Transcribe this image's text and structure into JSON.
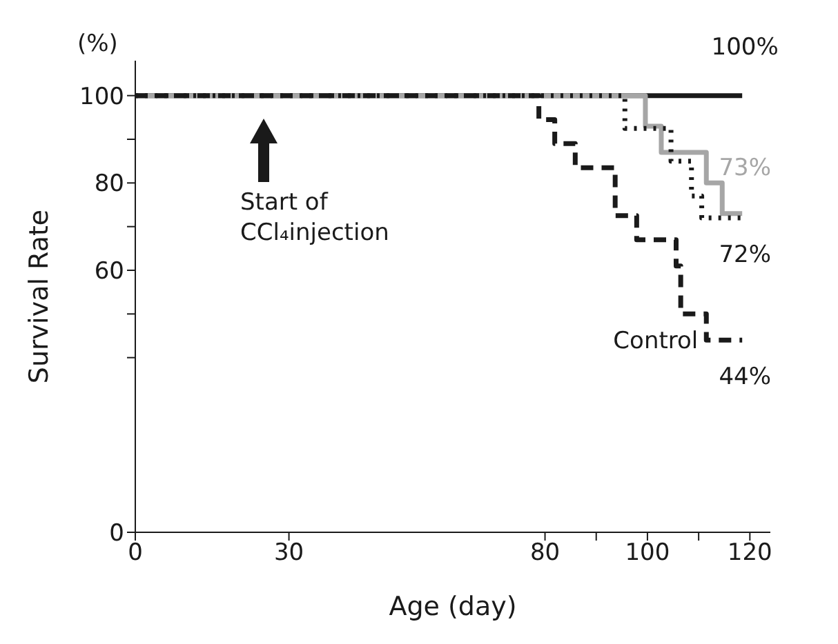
{
  "chart_data": {
    "type": "step",
    "xlabel": "Age (day)",
    "ylabel": "Survival Rate",
    "xlim": [
      0,
      124
    ],
    "xticks": [
      0,
      30,
      80,
      {
        "value": 90,
        "label": null
      },
      100,
      {
        "value": 110,
        "label": null
      },
      120
    ],
    "ylim": [
      0,
      108
    ],
    "yticks": [
      0,
      {
        "value": 40,
        "label": null
      },
      {
        "value": 50,
        "label": null
      },
      60,
      {
        "value": 70,
        "label": null
      },
      80,
      {
        "value": 90,
        "label": null
      },
      100
    ],
    "series": [
      {
        "color": "#1a1a1a",
        "line_style": "solid",
        "x": [
          0,
          118.5
        ],
        "values": [
          100,
          100
        ],
        "value_labels": [
          null,
          "100%"
        ]
      },
      {
        "color": "#a6a6a6",
        "line_style": "solid",
        "x": [
          0,
          99.6,
          102.7,
          111.5,
          114.6,
          118.5
        ],
        "values": [
          100,
          93,
          87,
          80,
          73,
          73
        ],
        "value_labels": [
          null,
          null,
          null,
          null,
          null,
          "73%"
        ]
      },
      {
        "color": "#1a1a1a",
        "line_style": "dotted",
        "x": [
          0,
          95.6,
          104.6,
          108.6,
          110.6,
          118.5
        ],
        "values": [
          100,
          92.5,
          85,
          77,
          72,
          72
        ],
        "value_labels": [
          null,
          null,
          null,
          null,
          null,
          "72%"
        ]
      },
      {
        "name": "Control",
        "color": "#1a1a1a",
        "line_style": "dashed",
        "x": [
          0,
          78.8,
          81.9,
          85.9,
          93.7,
          97.9,
          105.6,
          106.5,
          111.5,
          118.5
        ],
        "values": [
          100,
          94.5,
          89,
          83.5,
          72.5,
          67,
          61,
          50,
          44,
          44
        ],
        "value_labels": [
          null,
          null,
          null,
          null,
          null,
          null,
          null,
          null,
          null,
          "44%"
        ]
      }
    ],
    "annotations": [
      "(%)",
      "Start of CCl₄injection"
    ]
  }
}
